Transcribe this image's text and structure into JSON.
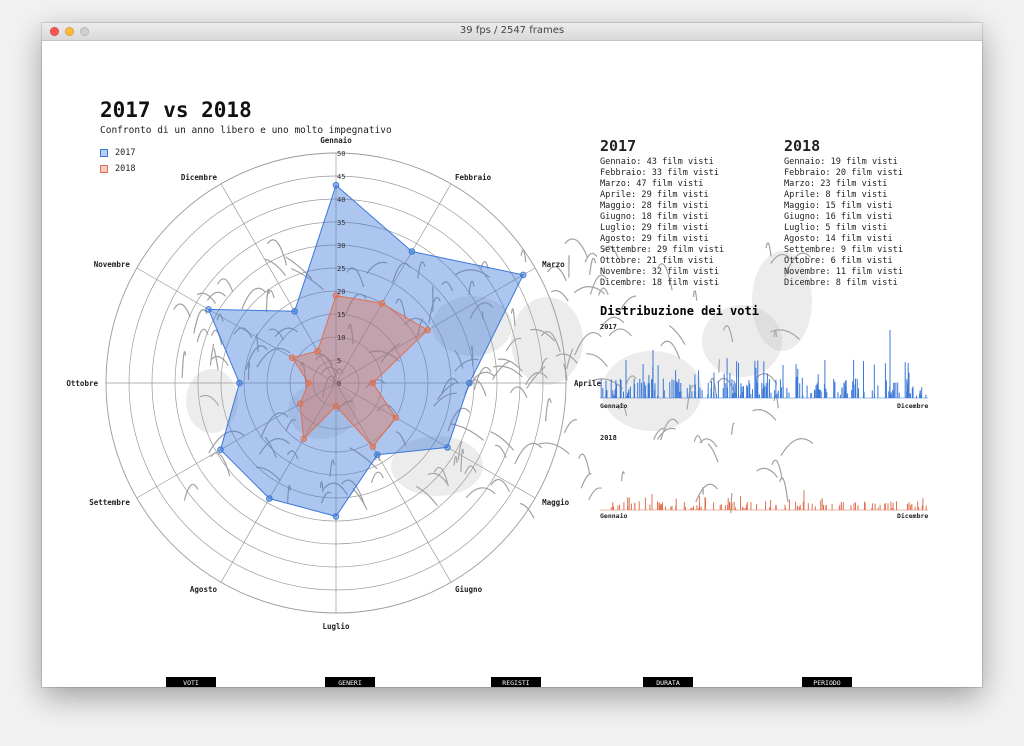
{
  "window": {
    "title": "39 fps / 2547 frames"
  },
  "header": {
    "title": "2017 vs 2018",
    "subtitle": "Confronto di un anno libero e uno molto impegnativo"
  },
  "legend": [
    {
      "label": "2017",
      "color": "#3b78d8"
    },
    {
      "label": "2018",
      "color": "#e07050"
    }
  ],
  "chart_data": [
    {
      "type": "radar",
      "title": "",
      "categories": [
        "Gennaio",
        "Febbraio",
        "Marzo",
        "Aprile",
        "Maggio",
        "Giugno",
        "Luglio",
        "Agosto",
        "Settembre",
        "Ottobre",
        "Novembre",
        "Dicembre"
      ],
      "r_ticks": [
        0,
        5,
        10,
        15,
        20,
        25,
        30,
        35,
        40,
        45,
        50
      ],
      "rlim": [
        0,
        50
      ],
      "series": [
        {
          "name": "2017",
          "values": [
            43,
            33,
            47,
            29,
            28,
            18,
            29,
            29,
            29,
            21,
            32,
            18
          ],
          "color": "#3b78d8"
        },
        {
          "name": "2018",
          "values": [
            19,
            20,
            23,
            8,
            15,
            16,
            5,
            14,
            9,
            6,
            11,
            8
          ],
          "color": "#e07050"
        }
      ]
    },
    {
      "type": "bar",
      "title": "Distribuzione dei voti",
      "series": [
        {
          "name": "2017",
          "color": "#3b78d8",
          "x_start": "Gennaio",
          "x_end": "Dicembre"
        },
        {
          "name": "2018",
          "color": "#e07050",
          "x_start": "Gennaio",
          "x_end": "Dicembre"
        }
      ]
    }
  ],
  "stats": {
    "y2017": {
      "heading": "2017",
      "lines": [
        "Gennaio: 43 film visti",
        "Febbraio: 33 film visti",
        "Marzo: 47 film visti",
        "Aprile: 29 film visti",
        "Maggio: 28 film visti",
        "Giugno: 18 film visti",
        "Luglio: 29 film visti",
        "Agosto: 29 film visti",
        "Settembre: 29 film visti",
        "Ottobre: 21 film visti",
        "Novembre: 32 film visti",
        "Dicembre: 18 film visti"
      ]
    },
    "y2018": {
      "heading": "2018",
      "lines": [
        "Gennaio: 19 film visti",
        "Febbraio: 20 film visti",
        "Marzo: 23 film visti",
        "Aprile: 8 film visti",
        "Maggio: 15 film visti",
        "Giugno: 16 film visti",
        "Luglio: 5 film visti",
        "Agosto: 14 film visti",
        "Settembre: 9 film visti",
        "Ottobre: 6 film visti",
        "Novembre: 11 film visti",
        "Dicembre: 8 film visti"
      ]
    }
  },
  "distribution": {
    "title": "Distribuzione dei voti",
    "label_2017": "2017",
    "label_2018": "2018",
    "start": "Gennaio",
    "end": "Dicembre"
  },
  "buttons": [
    "VOTI",
    "GENERI",
    "REGISTI",
    "DURATA",
    "PERIODO"
  ]
}
